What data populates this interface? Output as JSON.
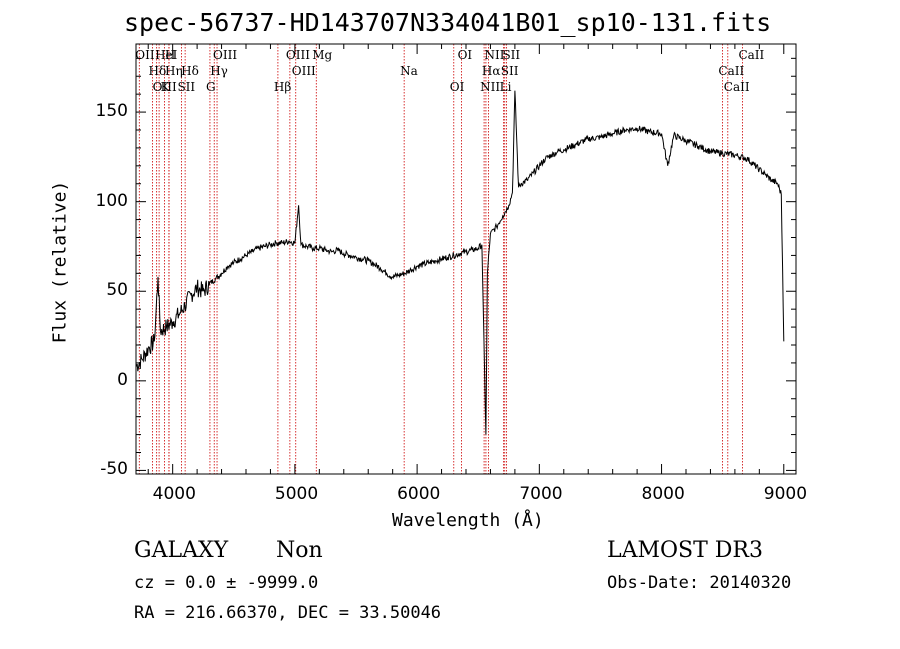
{
  "chart_data": {
    "type": "line",
    "title": "spec-56737-HD143707N334041B01_sp10-131.fits",
    "xlabel": "Wavelength (Å)",
    "ylabel": "Flux (relative)",
    "xlim": [
      3700,
      9100
    ],
    "ylim": [
      -52,
      188
    ],
    "x_ticks": [
      4000,
      5000,
      6000,
      7000,
      8000,
      9000
    ],
    "y_ticks": [
      -50,
      0,
      50,
      100,
      150
    ],
    "grid": false,
    "series": [
      {
        "x": [
          3700,
          3750,
          3800,
          3850,
          3880,
          3900,
          3950,
          4000,
          4050,
          4100,
          4150,
          4200,
          4250,
          4300,
          4350,
          4400,
          4450,
          4500,
          4550,
          4600,
          4650,
          4700,
          4750,
          4800,
          4850,
          4900,
          4950,
          5000,
          5030,
          5050,
          5100,
          5150,
          5200,
          5250,
          5300,
          5350,
          5400,
          5450,
          5500,
          5550,
          5600,
          5650,
          5700,
          5750,
          5800,
          5850,
          5900,
          5950,
          6000,
          6050,
          6100,
          6150,
          6200,
          6250,
          6300,
          6350,
          6400,
          6450,
          6500,
          6530,
          6563,
          6575,
          6600,
          6650,
          6700,
          6750,
          6780,
          6800,
          6830,
          6850,
          6900,
          6950,
          7000,
          7050,
          7100,
          7150,
          7200,
          7300,
          7400,
          7500,
          7600,
          7700,
          7800,
          7900,
          8000,
          8050,
          8100,
          8200,
          8300,
          8400,
          8500,
          8600,
          8700,
          8800,
          8850,
          8900,
          8950,
          8980,
          9000
        ],
        "y": [
          8,
          12,
          18,
          22,
          58,
          28,
          30,
          33,
          37,
          42,
          48,
          52,
          50,
          54,
          57,
          60,
          64,
          66,
          68,
          70,
          72,
          74,
          75,
          76,
          77,
          77,
          78,
          77,
          98,
          76,
          75,
          74,
          74,
          73,
          72,
          73,
          71,
          70,
          69,
          68,
          67,
          65,
          63,
          60,
          58,
          59,
          60,
          62,
          64,
          65,
          66,
          67,
          68,
          69,
          70,
          71,
          72,
          73,
          74,
          76,
          -30,
          60,
          82,
          86,
          92,
          98,
          105,
          162,
          108,
          110,
          112,
          116,
          120,
          124,
          126,
          128,
          129,
          132,
          135,
          136,
          138,
          140,
          141,
          139,
          138,
          120,
          137,
          134,
          131,
          128,
          127,
          126,
          124,
          118,
          115,
          112,
          110,
          104,
          22
        ]
      }
    ],
    "emission_lines": [
      {
        "name": "OII",
        "wavelength": 3727
      },
      {
        "name": "Hδ",
        "wavelength": 3835
      },
      {
        "name": "OIII",
        "wavelength": 3869
      },
      {
        "name": "HeI",
        "wavelength": 3889
      },
      {
        "name": "Hη",
        "wavelength": 3970
      },
      {
        "name": "K",
        "wavelength": 3934
      },
      {
        "name": "H",
        "wavelength": 3969
      },
      {
        "name": "Hδ",
        "wavelength": 4102
      },
      {
        "name": "SII",
        "wavelength": 4072
      },
      {
        "name": "OIII",
        "wavelength": 4363
      },
      {
        "name": "Hγ",
        "wavelength": 4340
      },
      {
        "name": "G",
        "wavelength": 4305
      },
      {
        "name": "OIII",
        "wavelength": 4959
      },
      {
        "name": "OIII",
        "wavelength": 5007
      },
      {
        "name": "Hβ",
        "wavelength": 4861
      },
      {
        "name": "Mg",
        "wavelength": 5175
      },
      {
        "name": "Na",
        "wavelength": 5894
      },
      {
        "name": "OI",
        "wavelength": 6300
      },
      {
        "name": "OI",
        "wavelength": 6364
      },
      {
        "name": "Hα",
        "wavelength": 6563
      },
      {
        "name": "NII",
        "wavelength": 6548
      },
      {
        "name": "NII",
        "wavelength": 6584
      },
      {
        "name": "SII",
        "wavelength": 6717
      },
      {
        "name": "Li",
        "wavelength": 6708
      },
      {
        "name": "SII",
        "wavelength": 6731
      },
      {
        "name": "CaII",
        "wavelength": 8498
      },
      {
        "name": "CaII",
        "wavelength": 8542
      },
      {
        "name": "CaII",
        "wavelength": 8662
      }
    ],
    "line_colors": {
      "spectrum": "#000000",
      "marker": "#cc0000",
      "axis": "#000000"
    }
  },
  "info": {
    "class": "GALAXY",
    "subclass": "Non",
    "cz": "cz = 0.0 ± -9999.0",
    "coords": "RA = 216.66370, DEC =  33.50046",
    "survey": "LAMOST DR3",
    "obs_date": "Obs-Date: 20140320"
  }
}
